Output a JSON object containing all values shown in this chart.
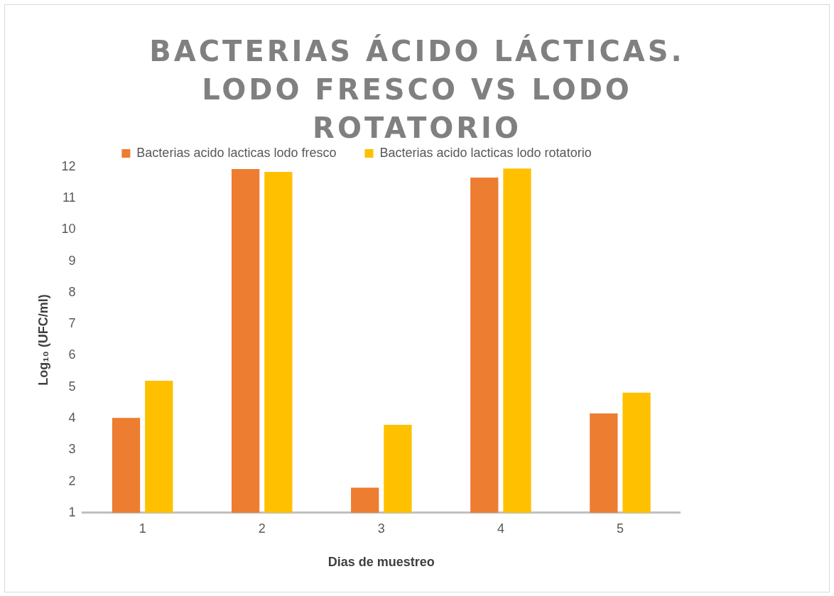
{
  "chart_data": {
    "type": "bar",
    "title": "BACTERIAS ÁCIDO LÁCTICAS. LODO FRESCO VS LODO ROTATORIO",
    "xlabel": "Dias de muestreo",
    "ylabel": "Log₁₀ (UFC/ml)",
    "categories": [
      "1",
      "2",
      "3",
      "4",
      "5"
    ],
    "series": [
      {
        "name": "Bacterias acido lacticas lodo fresco",
        "color": "#ed7d31",
        "values": [
          4.02,
          11.93,
          1.8,
          11.66,
          4.16
        ]
      },
      {
        "name": "Bacterias acido lacticas lodo rotatorio",
        "color": "#ffc000",
        "values": [
          5.2,
          11.84,
          3.8,
          11.95,
          4.82
        ]
      }
    ],
    "ylim": [
      1,
      12
    ],
    "yticks": [
      1,
      2,
      3,
      4,
      5,
      6,
      7,
      8,
      9,
      10,
      11,
      12
    ],
    "grid": false,
    "legend": "top"
  }
}
